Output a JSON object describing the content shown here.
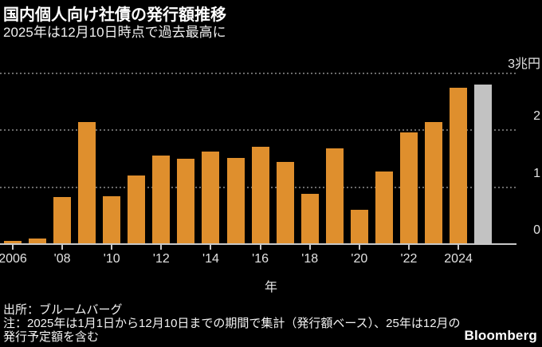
{
  "header": {
    "title": "国内個人向け社債の発行額推移",
    "subtitle": "2025年は12月10日時点で過去最高に"
  },
  "footer": {
    "source": "出所：ブルームバーグ",
    "note": "注：2025年は1月1日から12月10日までの期間で集計（発行額ベース）、25年は12月の発行予定額を含む",
    "logo": "Bloomberg"
  },
  "chart_data": {
    "type": "bar",
    "title": "国内個人向け社債の発行額推移",
    "subtitle": "2025年は12月10日時点で過去最高に",
    "unit": "兆円",
    "categories": [
      "2006",
      "2007",
      "2008",
      "2009",
      "2010",
      "2011",
      "2012",
      "2013",
      "2014",
      "2015",
      "2016",
      "2017",
      "2018",
      "2019",
      "2020",
      "2021",
      "2022",
      "2023",
      "2024",
      "2025"
    ],
    "values": [
      0.05,
      0.1,
      0.83,
      2.15,
      0.84,
      1.21,
      1.55,
      1.5,
      1.63,
      1.51,
      1.71,
      1.45,
      0.88,
      1.68,
      0.6,
      1.27,
      1.97,
      2.14,
      2.75,
      2.81
    ],
    "xlabel": "年",
    "ylabel": "",
    "ylim": [
      0,
      3.45
    ],
    "y_ticks": [
      {
        "value": 0,
        "label": "0"
      },
      {
        "value": 1,
        "label": "1"
      },
      {
        "value": 2,
        "label": "2"
      },
      {
        "value": 3,
        "label": "3兆円"
      }
    ],
    "x_ticks": [
      {
        "index": 0,
        "label": "2006"
      },
      {
        "index": 2,
        "label": "'08"
      },
      {
        "index": 4,
        "label": "'10"
      },
      {
        "index": 6,
        "label": "'12"
      },
      {
        "index": 8,
        "label": "'14"
      },
      {
        "index": 10,
        "label": "'16"
      },
      {
        "index": 12,
        "label": "'18"
      },
      {
        "index": 14,
        "label": "'20"
      },
      {
        "index": 16,
        "label": "'22"
      },
      {
        "index": 18,
        "label": "2024"
      }
    ],
    "colors": {
      "bar": "#DF8F2D",
      "last_bar": "#C2C2C2",
      "grid": "#6A6A6A",
      "axis": "#C8C8C8",
      "background": "#000000",
      "text": "#E3E3E3"
    },
    "last_bar_highlighted": true,
    "legend": "none",
    "grid": "horizontal-dotted"
  }
}
